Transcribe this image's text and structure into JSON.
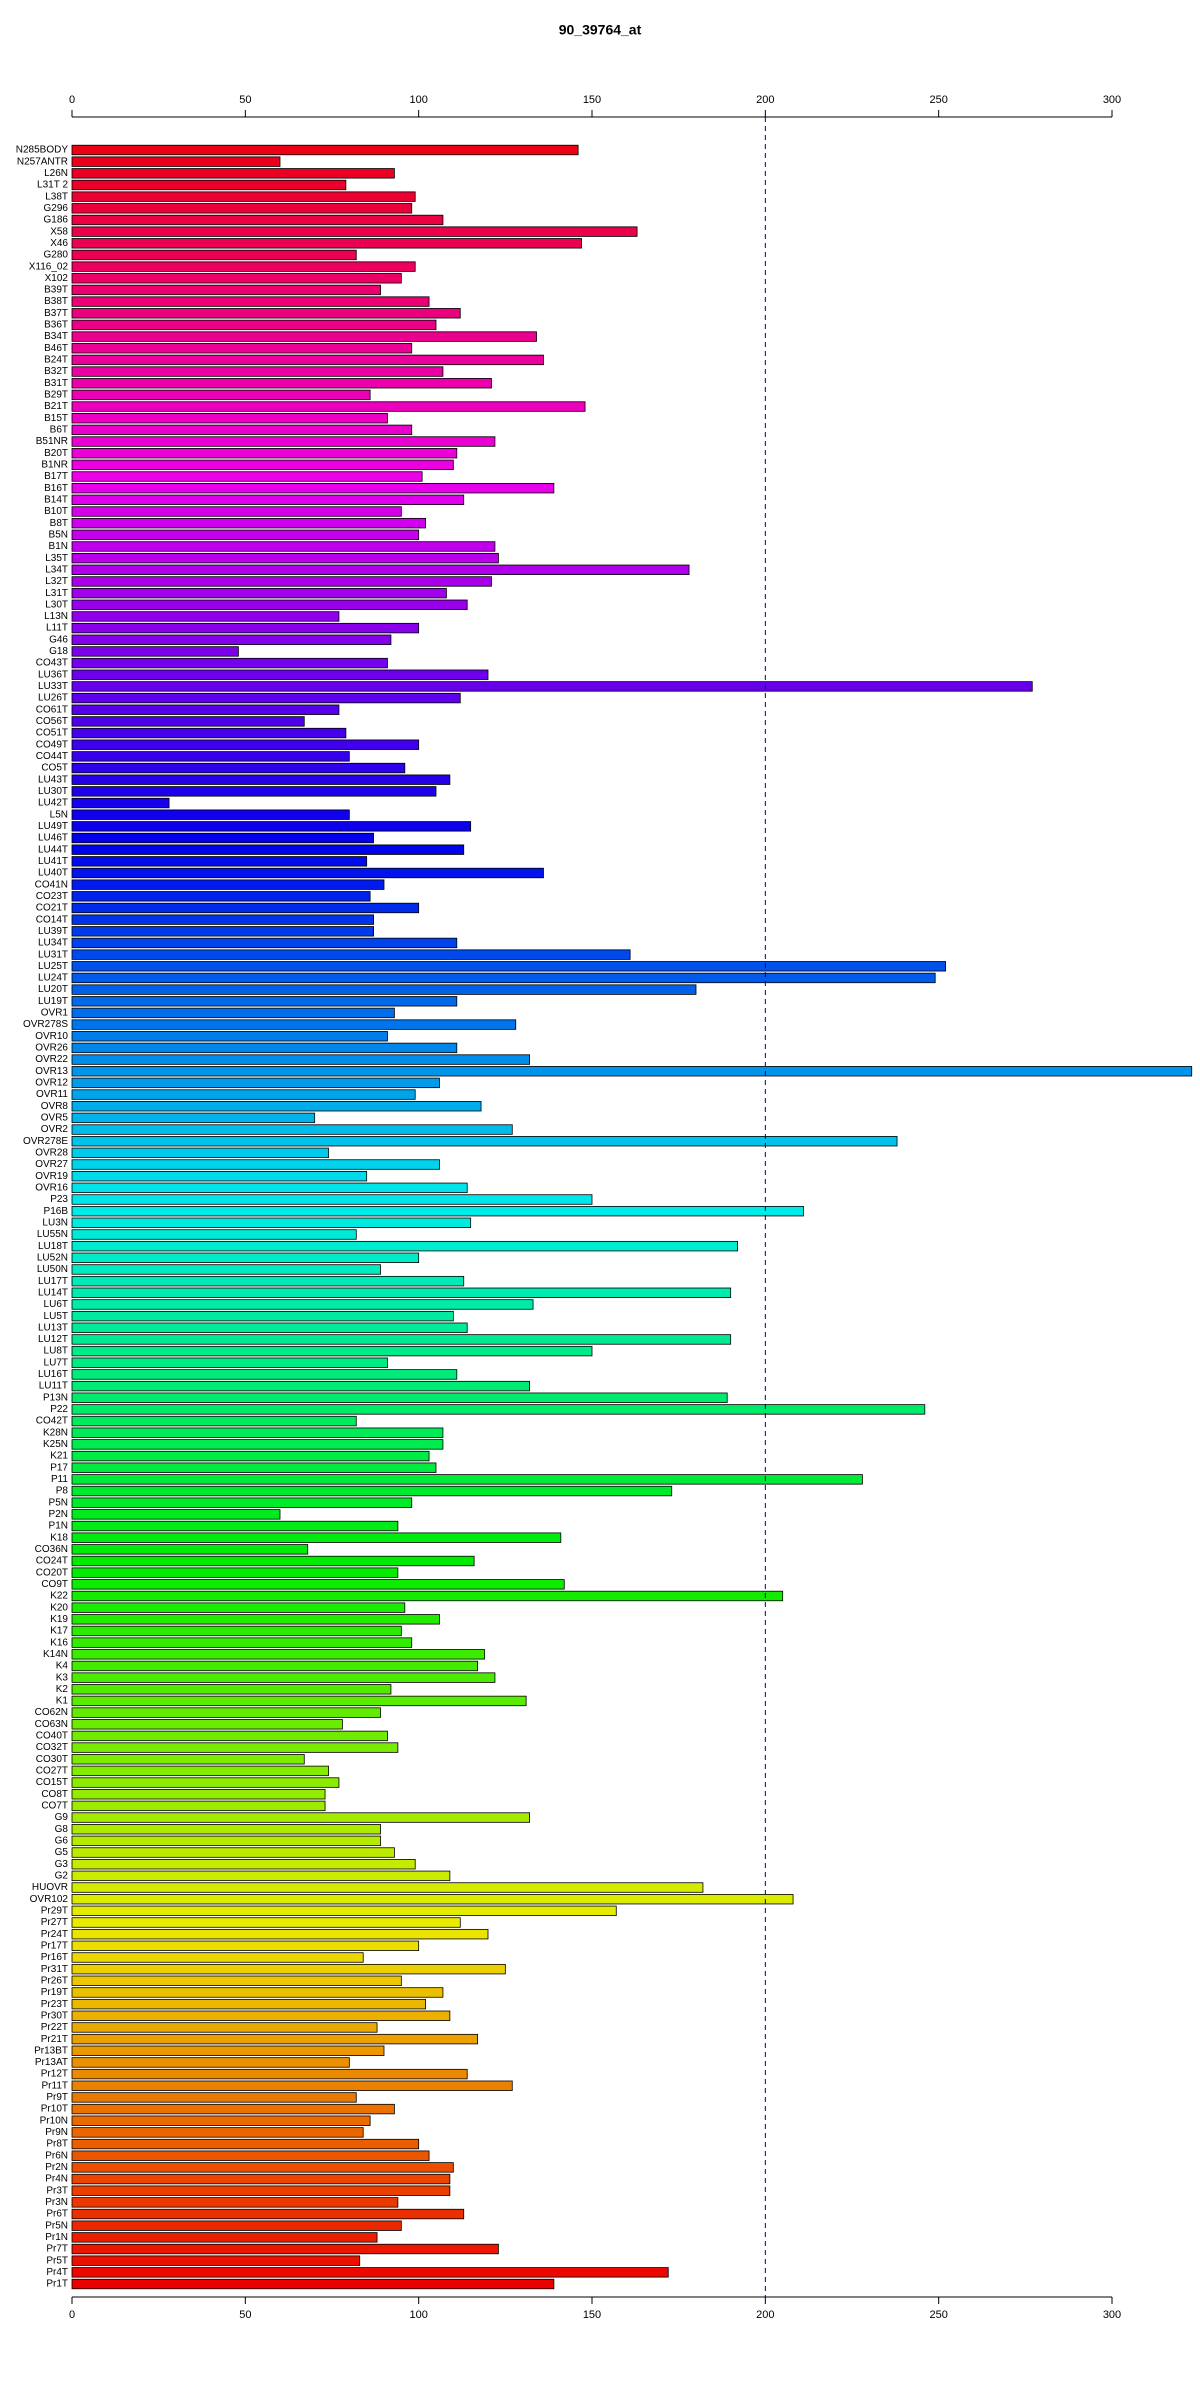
{
  "chart_data": {
    "type": "barh",
    "title": "90_39764_at",
    "categories": [
      "N285BODY",
      "N257ANTR",
      "L26N",
      "L31T 2",
      "L38T",
      "G296",
      "G186",
      "X58",
      "X46",
      "G280",
      "X116_02",
      "X102",
      "B39T",
      "B38T",
      "B37T",
      "B36T",
      "B34T",
      "B46T",
      "B24T",
      "B32T",
      "B31T",
      "B29T",
      "B21T",
      "B15T",
      "B6T",
      "B51NR",
      "B20T",
      "B1NR",
      "B17T",
      "B16T",
      "B14T",
      "B10T",
      "B8T",
      "B5N",
      "B1N",
      "L35T",
      "L34T",
      "L32T",
      "L31T",
      "L30T",
      "L13N",
      "L11T",
      "G46",
      "G18",
      "CO43T",
      "LU36T",
      "LU33T",
      "LU26T",
      "CO61T",
      "CO56T",
      "CO51T",
      "CO49T",
      "CO44T",
      "CO5T",
      "LU43T",
      "LU30T",
      "LU42T",
      "L5N",
      "LU49T",
      "LU46T",
      "LU44T",
      "LU41T",
      "LU40T",
      "CO41N",
      "CO23T",
      "CO21T",
      "CO14T",
      "LU39T",
      "LU34T",
      "LU31T",
      "LU25T",
      "LU24T",
      "LU20T",
      "LU19T",
      "OVR1",
      "OVR278S",
      "OVR10",
      "OVR26",
      "OVR22",
      "OVR13",
      "OVR12",
      "OVR11",
      "OVR8",
      "OVR5",
      "OVR2",
      "OVR278E",
      "OVR28",
      "OVR27",
      "OVR19",
      "OVR16",
      "P23",
      "P16B",
      "LU3N",
      "LU55N",
      "LU18T",
      "LU52N",
      "LU50N",
      "LU17T",
      "LU14T",
      "LU6T",
      "LU5T",
      "LU13T",
      "LU12T",
      "LU8T",
      "LU7T",
      "LU16T",
      "LU11T",
      "P13N",
      "P22",
      "CO42T",
      "K28N",
      "K25N",
      "K21",
      "P17",
      "P11",
      "P8",
      "P5N",
      "P2N",
      "P1N",
      "K18",
      "CO36N",
      "CO24T",
      "CO20T",
      "CO9T",
      "K22",
      "K20",
      "K19",
      "K17",
      "K16",
      "K14N",
      "K4",
      "K3",
      "K2",
      "K1",
      "CO62N",
      "CO63N",
      "CO40T",
      "CO32T",
      "CO30T",
      "CO27T",
      "CO15T",
      "CO8T",
      "CO7T",
      "G9",
      "G8",
      "G6",
      "G5",
      "G3",
      "G2",
      "HUOVR",
      "OVR102",
      "Pr29T",
      "Pr27T",
      "Pr24T",
      "Pr17T",
      "Pr16T",
      "Pr31T",
      "Pr26T",
      "Pr19T",
      "Pr23T",
      "Pr30T",
      "Pr22T",
      "Pr21T",
      "Pr13BT",
      "Pr13AT",
      "Pr12T",
      "Pr11T",
      "Pr9T",
      "Pr10T",
      "Pr10N",
      "Pr9N",
      "Pr8T",
      "Pr6N",
      "Pr2N",
      "Pr4N",
      "Pr3T",
      "Pr3N",
      "Pr6T",
      "Pr5N",
      "Pr1N",
      "Pr7T",
      "Pr5T",
      "Pr4T",
      "Pr1T"
    ],
    "values": [
      146,
      60,
      93,
      79,
      99,
      98,
      107,
      163,
      147,
      82,
      99,
      95,
      89,
      103,
      112,
      105,
      134,
      98,
      136,
      107,
      121,
      86,
      148,
      91,
      98,
      122,
      111,
      110,
      101,
      139,
      113,
      95,
      102,
      100,
      122,
      123,
      178,
      121,
      108,
      114,
      77,
      100,
      92,
      48,
      91,
      120,
      277,
      112,
      77,
      67,
      79,
      100,
      80,
      96,
      109,
      105,
      28,
      80,
      115,
      87,
      113,
      85,
      136,
      90,
      86,
      100,
      87,
      87,
      111,
      161,
      252,
      249,
      180,
      111,
      93,
      128,
      91,
      111,
      132,
      323,
      106,
      99,
      118,
      70,
      127,
      238,
      74,
      106,
      85,
      114,
      150,
      211,
      115,
      82,
      192,
      100,
      89,
      113,
      190,
      133,
      110,
      114,
      190,
      150,
      91,
      111,
      132,
      189,
      246,
      82,
      107,
      107,
      103,
      105,
      228,
      173,
      98,
      60,
      94,
      141,
      68,
      116,
      94,
      142,
      205,
      96,
      106,
      95,
      98,
      119,
      117,
      122,
      92,
      131,
      89,
      78,
      91,
      94,
      67,
      74,
      77,
      73,
      73,
      132,
      89,
      89,
      93,
      99,
      109,
      182,
      208,
      157,
      112,
      120,
      100,
      84,
      125,
      95,
      107,
      102,
      109,
      88,
      117,
      90,
      80,
      114,
      127,
      82,
      93,
      86,
      84,
      100,
      103,
      110,
      109,
      109,
      94,
      113,
      95,
      88,
      123,
      83,
      172,
      139
    ],
    "hues": [
      355,
      353,
      351,
      349,
      347,
      345,
      343,
      341,
      339,
      338,
      336,
      334,
      332,
      330,
      328,
      326,
      324,
      322,
      320,
      318,
      316,
      314,
      312,
      310,
      308,
      306,
      305,
      303,
      301,
      299,
      297,
      295,
      293,
      291,
      289,
      287,
      285,
      283,
      281,
      279,
      277,
      275,
      274,
      272,
      270,
      268,
      266,
      264,
      262,
      260,
      258,
      256,
      254,
      252,
      250,
      248,
      246,
      244,
      243,
      241,
      239,
      237,
      235,
      233,
      231,
      229,
      227,
      225,
      223,
      221,
      219,
      217,
      215,
      213,
      212,
      210,
      208,
      206,
      204,
      202,
      200,
      198,
      196,
      194,
      192,
      190,
      188,
      186,
      184,
      182,
      181,
      179,
      177,
      175,
      173,
      171,
      169,
      167,
      165,
      163,
      161,
      159,
      157,
      155,
      153,
      151,
      150,
      148,
      146,
      144,
      142,
      140,
      138,
      136,
      134,
      132,
      130,
      128,
      126,
      124,
      122,
      120,
      119,
      117,
      115,
      113,
      111,
      109,
      107,
      105,
      103,
      101,
      99,
      97,
      95,
      93,
      91,
      89,
      88,
      86,
      84,
      82,
      80,
      78,
      76,
      74,
      72,
      70,
      68,
      66,
      64,
      62,
      60,
      58,
      57,
      55,
      53,
      51,
      49,
      47,
      45,
      43,
      41,
      39,
      37,
      35,
      33,
      31,
      29,
      27,
      26,
      24,
      22,
      20,
      18,
      16,
      14,
      12,
      10,
      8,
      6,
      4,
      2,
      0
    ],
    "xlim": [
      0,
      300
    ],
    "xticks": [
      0,
      50,
      100,
      150,
      200,
      250,
      300
    ],
    "reference_line": 200
  }
}
